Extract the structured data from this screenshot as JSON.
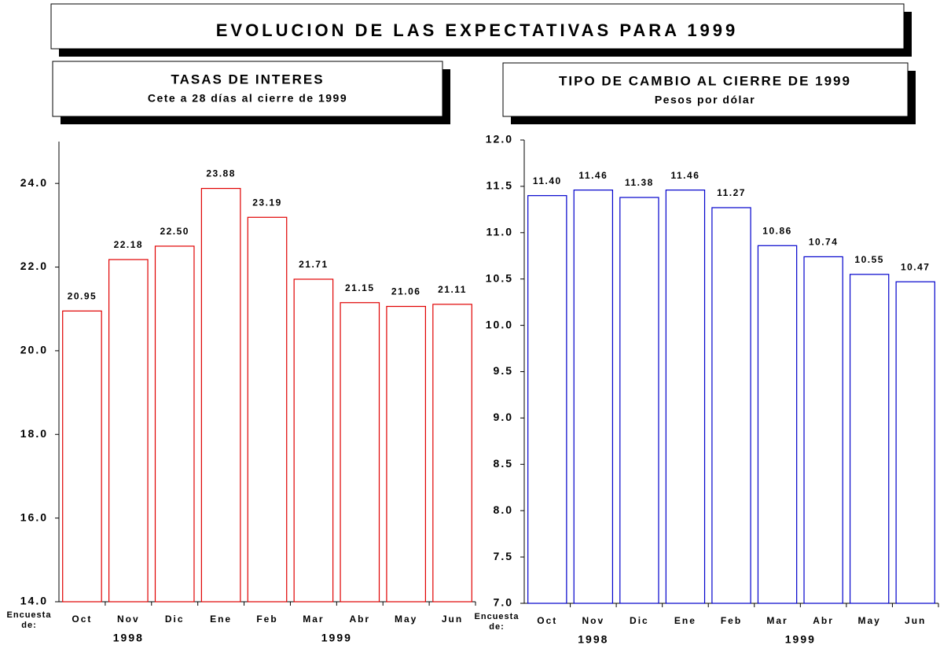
{
  "title": "EVOLUCION DE LAS EXPECTATIVAS PARA 1999",
  "chart_data": [
    {
      "type": "bar",
      "title": "TASAS DE INTERES",
      "subtitle": "Cete a 28 días al cierre de 1999",
      "categories": [
        "Oct",
        "Nov",
        "Dic",
        "Ene",
        "Feb",
        "Mar",
        "Abr",
        "May",
        "Jun"
      ],
      "values": [
        20.95,
        22.18,
        22.5,
        23.88,
        23.19,
        21.71,
        21.15,
        21.06,
        21.11
      ],
      "value_labels": [
        "20.95",
        "22.18",
        "22.50",
        "23.88",
        "23.19",
        "21.71",
        "21.15",
        "21.06",
        "21.11"
      ],
      "color": "#e00000",
      "ylim": [
        14,
        25
      ],
      "yticks": [
        {
          "value": 14,
          "label": "14.0"
        },
        {
          "value": 16,
          "label": "16.0"
        },
        {
          "value": 18,
          "label": "18.0"
        },
        {
          "value": 20,
          "label": "20.0"
        },
        {
          "value": 22,
          "label": "22.0"
        },
        {
          "value": 24,
          "label": "24.0"
        }
      ],
      "x_label": [
        "Encuesta",
        "de:"
      ],
      "x_groups": [
        "1998",
        "1999"
      ]
    },
    {
      "type": "bar",
      "title": "TIPO DE CAMBIO AL CIERRE DE 1999",
      "subtitle": "Pesos por dólar",
      "categories": [
        "Oct",
        "Nov",
        "Dic",
        "Ene",
        "Feb",
        "Mar",
        "Abr",
        "May",
        "Jun"
      ],
      "values": [
        11.4,
        11.46,
        11.38,
        11.46,
        11.27,
        10.86,
        10.74,
        10.55,
        10.47
      ],
      "value_labels": [
        "11.40",
        "11.46",
        "11.38",
        "11.46",
        "11.27",
        "10.86",
        "10.74",
        "10.55",
        "10.47"
      ],
      "color": "#0000cc",
      "ylim": [
        7,
        12
      ],
      "yticks": [
        {
          "value": 7,
          "label": "7.0"
        },
        7.5,
        {
          "value": 8,
          "label": "8.0"
        },
        8.5,
        {
          "value": 9,
          "label": "9.0"
        },
        9.5,
        {
          "value": 10,
          "label": "10.0"
        },
        10.5,
        {
          "value": 11,
          "label": "11.0"
        },
        11.5,
        {
          "value": 12,
          "label": "12.0"
        }
      ],
      "x_label": [
        "Encuesta",
        "de:"
      ],
      "x_groups": [
        "1998",
        "1999"
      ]
    }
  ]
}
